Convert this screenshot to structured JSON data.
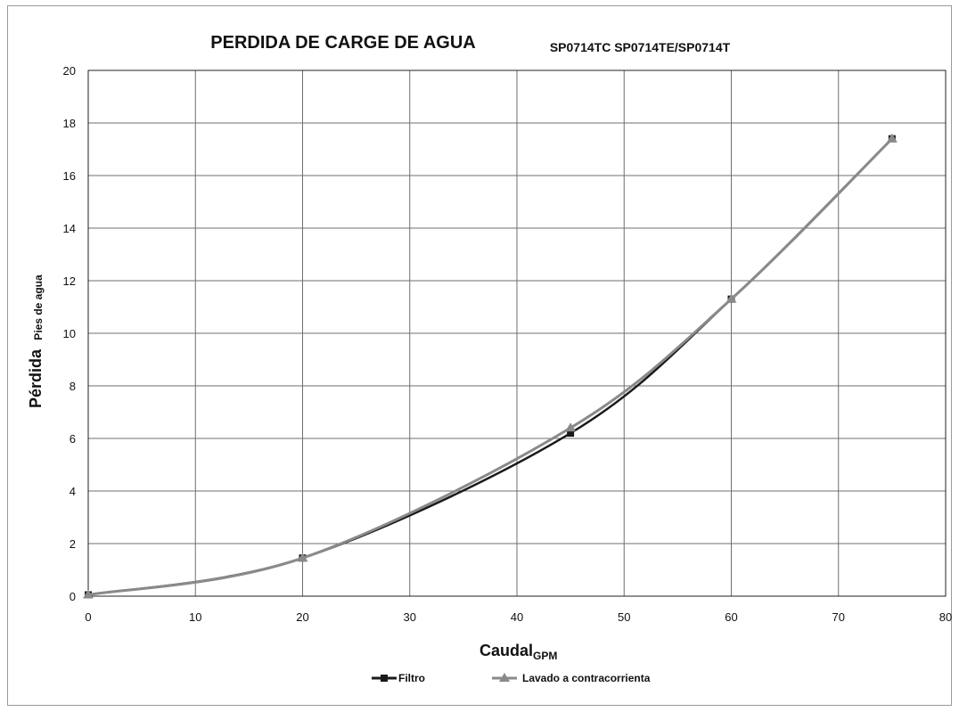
{
  "chart_data": {
    "type": "line",
    "title": "PERDIDA DE CARGE DE AGUA",
    "subtitle": "SP0714TC SP0714TE/SP0714T",
    "xlabel": "Caudal",
    "xunit": "GPM",
    "ylabel": "Pérdida",
    "yunit": "Pies de agua",
    "xlim": [
      0,
      80
    ],
    "ylim": [
      0,
      20
    ],
    "xticks": [
      "0",
      "10",
      "20",
      "30",
      "40",
      "50",
      "60",
      "70",
      "80"
    ],
    "yticks": [
      "0",
      "2",
      "4",
      "6",
      "8",
      "10",
      "12",
      "14",
      "16",
      "18",
      "20"
    ],
    "grid": true,
    "legend_position": "bottom",
    "series": [
      {
        "name": "Filtro",
        "color": "#1a1a1a",
        "marker": "square",
        "x": [
          0,
          20,
          45,
          60,
          75
        ],
        "y": [
          0.05,
          1.45,
          6.2,
          11.3,
          17.4
        ]
      },
      {
        "name": "Lavado a contracorrienta",
        "color": "#8a8a8a",
        "marker": "triangle",
        "x": [
          0,
          20,
          45,
          60,
          75
        ],
        "y": [
          0.05,
          1.45,
          6.4,
          11.3,
          17.4
        ]
      }
    ]
  }
}
